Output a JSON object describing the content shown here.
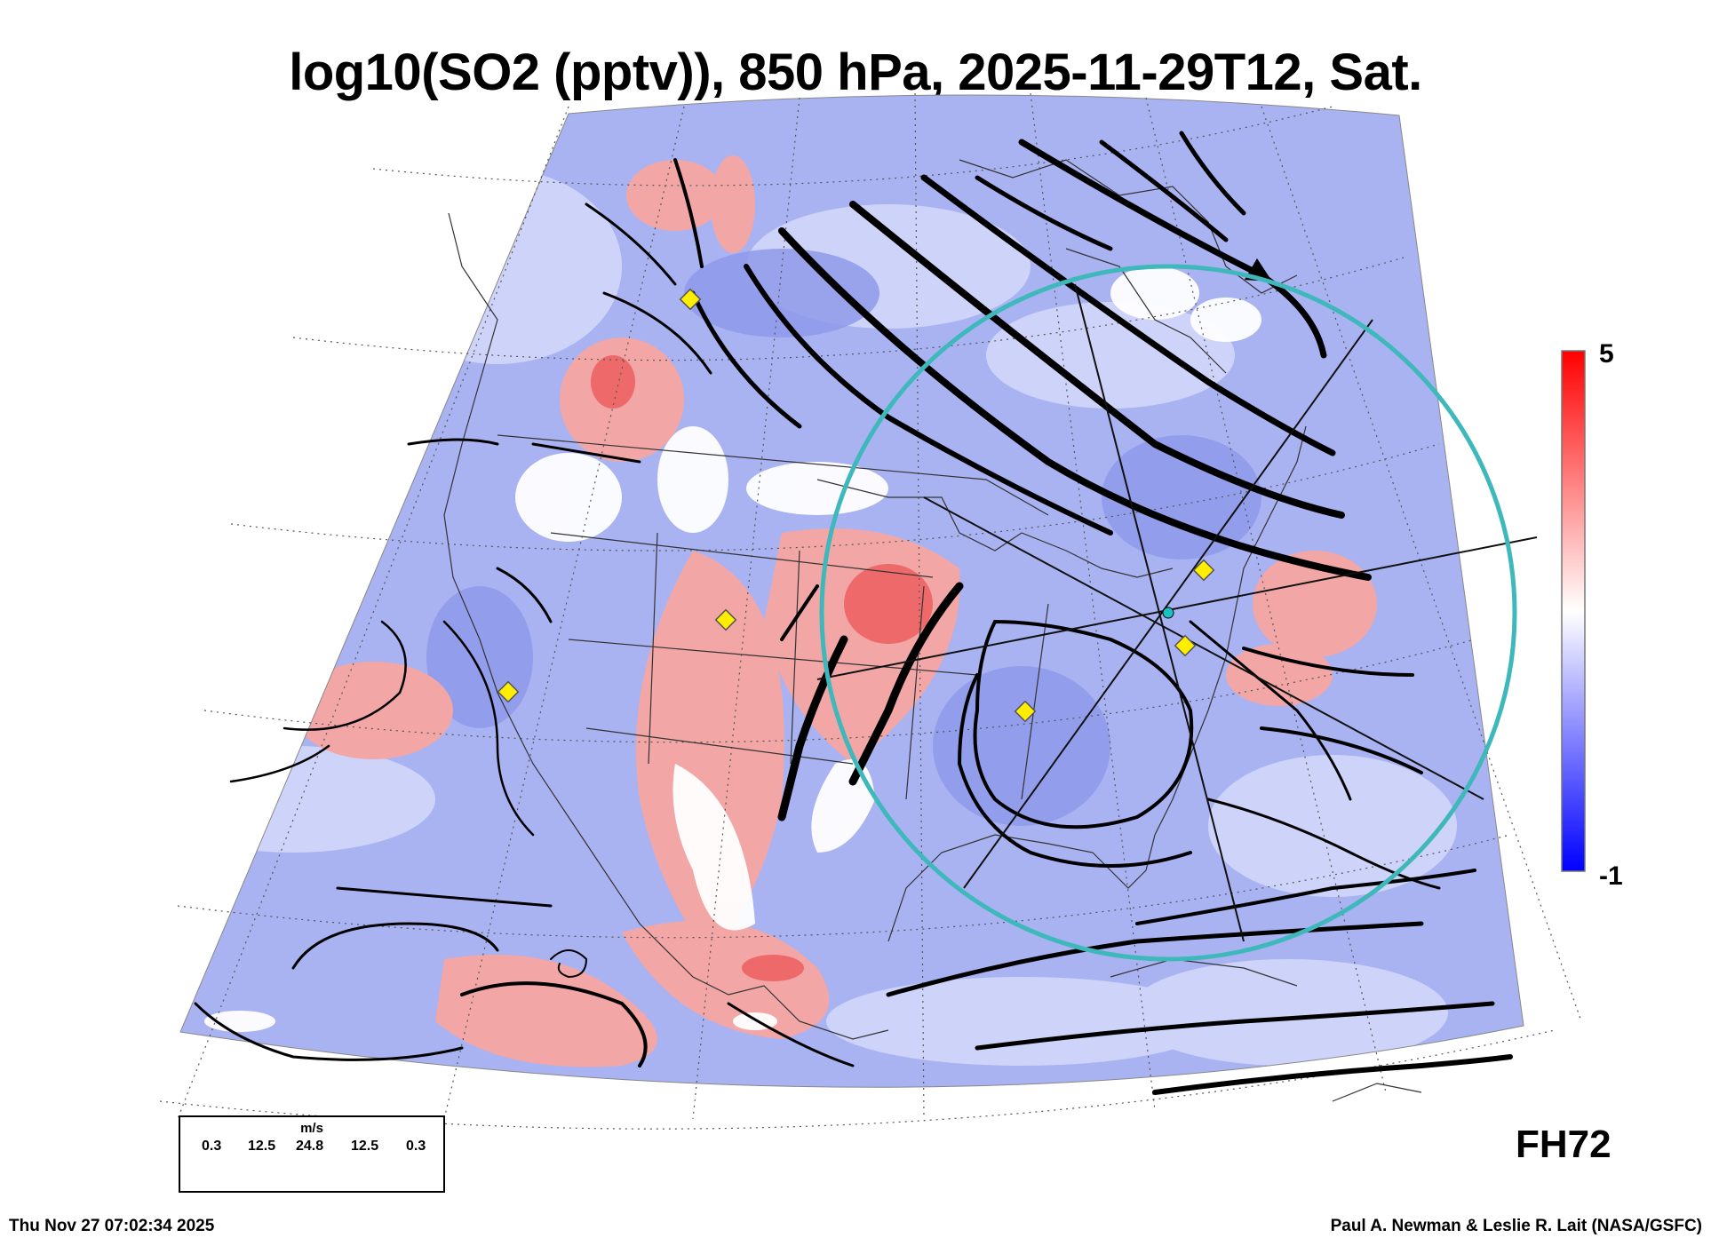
{
  "title": "log10(SO2 (pptv)), 850 hPa, 2025-11-29T12, Sat.",
  "colorbar": {
    "max_label": "5",
    "min_label": "-1",
    "colors": {
      "high": "#ff0000",
      "mid": "#ffffff",
      "low": "#0000ff"
    }
  },
  "forecast_hour": "FH72",
  "wind_scale": {
    "unit": "m/s",
    "ticks": [
      "0.3",
      "12.5",
      "24.8",
      "12.5",
      "0.3"
    ]
  },
  "footer": {
    "timestamp": "Thu Nov 27 07:02:34 2025",
    "credit": "Paul A. Newman & Leslie R. Lait (NASA/GSFC)"
  },
  "overlay": {
    "circle_color": "#3fb8bb",
    "marker_color": "#ffee00",
    "center_marker_color": "#19c2c2"
  }
}
